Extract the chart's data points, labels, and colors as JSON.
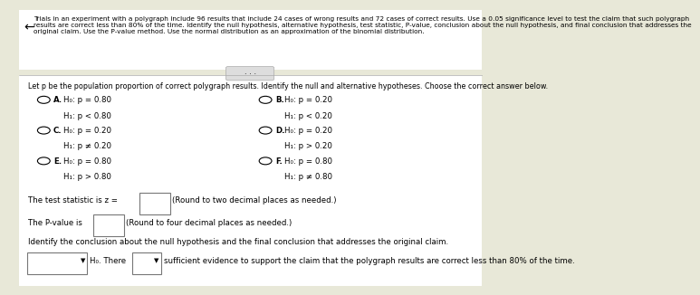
{
  "bg_color": "#e8e8d8",
  "white_bg": "#ffffff",
  "header_text": "Trials in an experiment with a polygraph include 96 results that include 24 cases of wrong results and 72 cases of correct results. Use a 0.05 significance level to test the claim that such polygraph\nresults are correct less than 80% of the time. Identify the null hypothesis, alternative hypothesis, test statistic, P-value, conclusion about the null hypothesis, and final conclusion that addresses the\noriginal claim. Use the P-value method. Use the normal distribution as an approximation of the binomial distribution.",
  "subheader": "Let p be the population proportion of correct polygraph results. Identify the null and alternative hypotheses. Choose the correct answer below.",
  "options": [
    {
      "label": "A.",
      "line1": "H₀: p = 0.80",
      "line2": "H₁: p < 0.80"
    },
    {
      "label": "B.",
      "line1": "H₀: p = 0.20",
      "line2": "H₁: p < 0.20"
    },
    {
      "label": "C.",
      "line1": "H₀: p = 0.20",
      "line2": "H₁: p ≠ 0.20"
    },
    {
      "label": "D.",
      "line1": "H₀: p = 0.20",
      "line2": "H₁: p > 0.20"
    },
    {
      "label": "E.",
      "line1": "H₀: p = 0.80",
      "line2": "H₁: p > 0.80"
    },
    {
      "label": "F.",
      "line1": "H₀: p = 0.80",
      "line2": "H₁: p ≠ 0.80"
    }
  ],
  "test_stat_text": "The test statistic is z =",
  "pvalue_text": "The P-value is",
  "conclusion_text": "Identify the conclusion about the null hypothesis and the final conclusion that addresses the original claim.",
  "final_line": "sufficient evidence to support the claim that the polygraph results are correct less than 80% of the time.",
  "h0_label": "H₀. There"
}
